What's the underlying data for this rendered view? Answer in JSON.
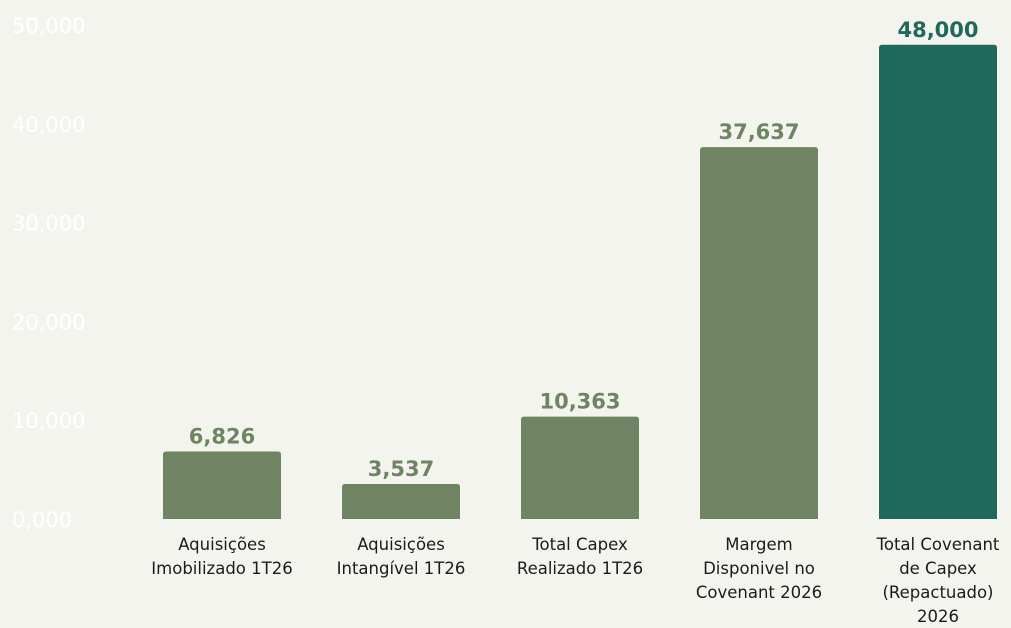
{
  "chart_data": {
    "type": "bar",
    "categories": [
      [
        "Aquisições",
        "Imobilizado 1T26"
      ],
      [
        "Aquisições",
        "Intangível 1T26"
      ],
      [
        "Total Capex",
        "Realizado 1T26"
      ],
      [
        "Margem",
        "Disponivel no",
        "Covenant 2026"
      ],
      [
        "Total Covenant",
        "de Capex",
        "(Repactuado)",
        "2026"
      ]
    ],
    "values": [
      6826,
      3537,
      10363,
      37637,
      48000
    ],
    "value_labels": [
      "6,826",
      "3,537",
      "10,363",
      "37,637",
      "48,000"
    ],
    "bar_colors": [
      "#6e8462",
      "#6e8462",
      "#6e8462",
      "#6e8462",
      "#20695a"
    ],
    "yticks": [
      0,
      10000,
      20000,
      30000,
      40000,
      50000
    ],
    "ytick_labels": [
      "0,000",
      "10,000",
      "20,000",
      "30,000",
      "40,000",
      "50,000"
    ],
    "ylim": [
      0,
      50000
    ],
    "grid": false,
    "legend": false,
    "title": "",
    "xlabel": "",
    "ylabel": ""
  }
}
